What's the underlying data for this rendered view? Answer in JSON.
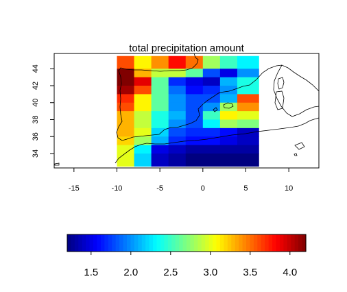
{
  "chart_data": {
    "type": "heatmap",
    "title": "total precipitation amount",
    "xlabel": "",
    "ylabel": "",
    "xlim": [
      -17.3,
      13.5
    ],
    "ylim": [
      32.3,
      45.8
    ],
    "x_ticks": [
      -15,
      -10,
      -5,
      0,
      5,
      10
    ],
    "y_ticks": [
      34,
      36,
      38,
      40,
      42,
      44
    ],
    "grid_x_edges": [
      -10,
      -8,
      -6,
      -4,
      -2,
      0,
      2,
      4,
      6.5
    ],
    "grid_y_edges": [
      32.5,
      34,
      35,
      36,
      37,
      38,
      39,
      40,
      41,
      42,
      43,
      44,
      45.5
    ],
    "rows_from_top": [
      [
        3.6,
        3.1,
        3.4,
        3.8,
        3.5,
        2.8,
        2.5,
        2.3
      ],
      [
        4.2,
        3.3,
        2.9,
        2.9,
        2.6,
        1.8,
        1.5,
        2.0
      ],
      [
        4.2,
        3.9,
        2.6,
        1.7,
        1.5,
        1.4,
        2.1,
        2.4
      ],
      [
        4.1,
        3.6,
        2.6,
        1.9,
        1.6,
        1.7,
        2.0,
        2.4
      ],
      [
        3.7,
        3.1,
        2.6,
        2.0,
        1.8,
        1.8,
        2.1,
        3.6
      ],
      [
        3.6,
        3.1,
        2.6,
        2.0,
        1.8,
        2.0,
        2.8,
        3.4
      ],
      [
        3.3,
        2.9,
        2.4,
        2.1,
        1.8,
        2.5,
        3.1,
        3.0
      ],
      [
        3.3,
        2.9,
        2.4,
        2.0,
        1.8,
        2.3,
        2.8,
        2.7
      ],
      [
        3.3,
        3.0,
        2.2,
        1.8,
        1.7,
        1.7,
        1.6,
        1.4
      ],
      [
        3.2,
        2.8,
        2.1,
        1.7,
        1.6,
        1.6,
        1.5,
        1.4
      ],
      [
        3.0,
        2.3,
        1.5,
        1.4,
        1.3,
        1.3,
        1.3,
        1.3
      ],
      [
        3.0,
        2.2,
        1.4,
        1.3,
        1.2,
        1.2,
        1.2,
        1.2
      ]
    ],
    "colorbar": {
      "min": 1.2,
      "max": 4.2,
      "ticks": [
        1.5,
        2.0,
        2.5,
        3.0,
        3.5,
        4.0
      ],
      "tick_labels": [
        "1.5",
        "2.0",
        "2.5",
        "3.0",
        "3.5",
        "4.0"
      ],
      "palette": "jet"
    },
    "legend_placement": "bottom",
    "grid": false
  }
}
